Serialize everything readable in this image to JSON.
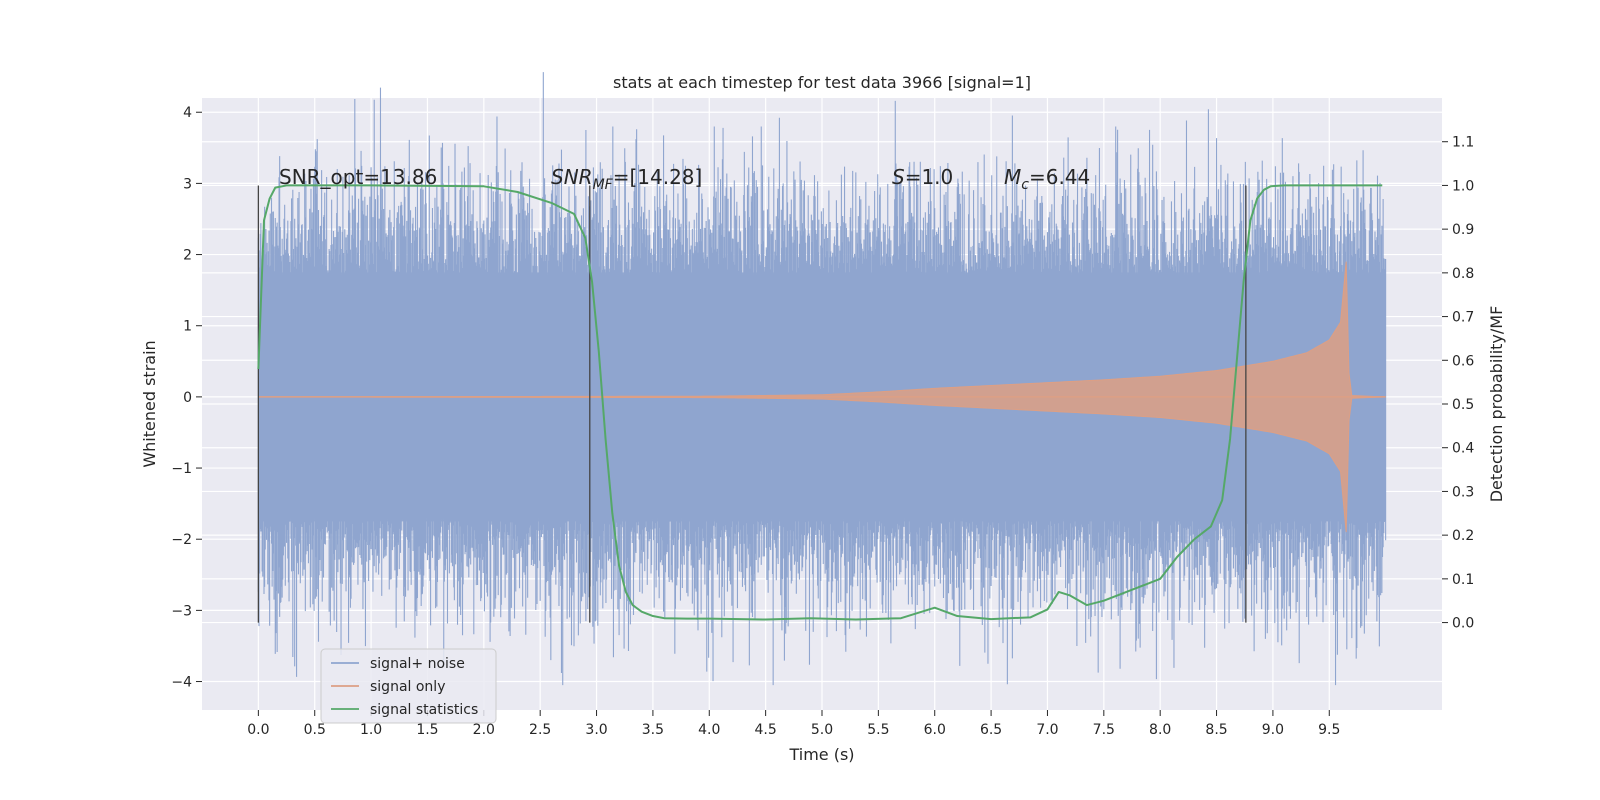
{
  "chart_data": {
    "type": "line",
    "title": "stats at each timestep for test data 3966 [signal=1]",
    "xlabel": "Time (s)",
    "ylabel_left": "Whitened strain",
    "ylabel_right": "Detection probability/MF",
    "xlim": [
      -0.5,
      10.5
    ],
    "ylim_left": [
      -4.4,
      4.2
    ],
    "ylim_right": [
      -0.2,
      1.2
    ],
    "x_ticks": [
      "0.0",
      "0.5",
      "1.0",
      "1.5",
      "2.0",
      "2.5",
      "3.0",
      "3.5",
      "4.0",
      "4.5",
      "5.0",
      "5.5",
      "6.0",
      "6.5",
      "7.0",
      "7.5",
      "8.0",
      "8.5",
      "9.0",
      "9.5"
    ],
    "x_tick_values": [
      0,
      0.5,
      1,
      1.5,
      2,
      2.5,
      3,
      3.5,
      4,
      4.5,
      5,
      5.5,
      6,
      6.5,
      7,
      7.5,
      8,
      8.5,
      9,
      9.5
    ],
    "y_left_ticks": [
      "−4",
      "−3",
      "−2",
      "−1",
      "0",
      "1",
      "2",
      "3",
      "4"
    ],
    "y_left_tick_values": [
      -4,
      -3,
      -2,
      -1,
      0,
      1,
      2,
      3,
      4
    ],
    "y_right_ticks": [
      "0.0",
      "0.1",
      "0.2",
      "0.3",
      "0.4",
      "0.5",
      "0.6",
      "0.7",
      "0.8",
      "0.9",
      "1.0",
      "1.1"
    ],
    "y_right_tick_values": [
      0,
      0.1,
      0.2,
      0.3,
      0.4,
      0.5,
      0.6,
      0.7,
      0.8,
      0.9,
      1.0,
      1.1
    ],
    "grid": true,
    "legend_placement": "lower-left",
    "annotations": {
      "snr_opt": "SNR_opt=13.86",
      "snr_mf_main": "SNR",
      "snr_mf_sub": "MF",
      "snr_mf_value": "=[14.28]",
      "s_main": "S",
      "s_value": "=1.0",
      "mc_main": "M",
      "mc_sub": "c",
      "mc_value": "=6.44"
    },
    "vertical_markers_x": [
      0.0,
      2.94,
      8.76
    ],
    "series": [
      {
        "name": "signal+ noise",
        "axis": "left",
        "color": "#8fa5cf",
        "x_range": [
          0.0,
          10.0
        ],
        "amplitude_envelope": 1.7,
        "typical_extremes": [
          -4.05,
          3.8
        ]
      },
      {
        "name": "signal only",
        "axis": "left",
        "color": "#dd9f84",
        "x": [
          0.0,
          4.0,
          5.0,
          5.5,
          6.0,
          6.5,
          7.0,
          7.5,
          8.0,
          8.5,
          9.0,
          9.3,
          9.5,
          9.6,
          9.65,
          9.68,
          10.0
        ],
        "envelope": [
          0.0,
          0.01,
          0.03,
          0.07,
          0.12,
          0.16,
          0.2,
          0.24,
          0.29,
          0.37,
          0.5,
          0.62,
          0.8,
          1.05,
          1.9,
          0.02,
          0.0
        ]
      },
      {
        "name": "signal statistics",
        "axis": "right",
        "color": "#55a868",
        "x": [
          0.0,
          0.05,
          0.1,
          0.15,
          0.25,
          0.4,
          1.0,
          2.0,
          2.3,
          2.6,
          2.8,
          2.9,
          2.96,
          3.02,
          3.08,
          3.14,
          3.2,
          3.26,
          3.32,
          3.4,
          3.5,
          3.6,
          3.8,
          4.0,
          4.5,
          4.9,
          5.3,
          5.7,
          6.0,
          6.2,
          6.5,
          6.85,
          7.0,
          7.1,
          7.2,
          7.35,
          7.5,
          7.8,
          8.0,
          8.15,
          8.3,
          8.45,
          8.55,
          8.62,
          8.68,
          8.74,
          8.8,
          8.86,
          8.92,
          8.98,
          9.1,
          9.5,
          9.97
        ],
        "values": [
          0.58,
          0.92,
          0.97,
          0.995,
          1.0,
          1.0,
          1.0,
          0.998,
          0.985,
          0.96,
          0.935,
          0.88,
          0.78,
          0.62,
          0.42,
          0.25,
          0.13,
          0.07,
          0.04,
          0.025,
          0.015,
          0.01,
          0.009,
          0.009,
          0.007,
          0.01,
          0.007,
          0.01,
          0.034,
          0.015,
          0.008,
          0.012,
          0.03,
          0.07,
          0.062,
          0.04,
          0.05,
          0.08,
          0.1,
          0.15,
          0.19,
          0.22,
          0.28,
          0.42,
          0.6,
          0.78,
          0.92,
          0.97,
          0.99,
          0.998,
          1.0,
          1.0,
          1.0
        ]
      }
    ]
  }
}
